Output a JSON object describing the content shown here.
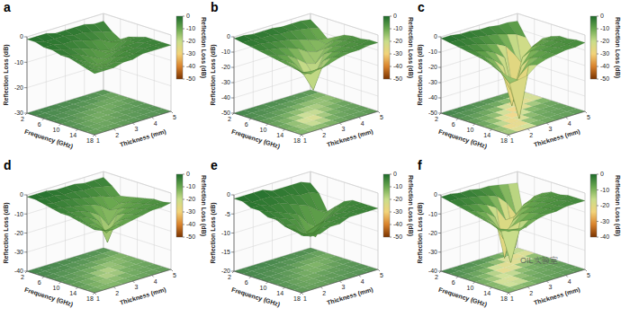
{
  "chart_data": [
    {
      "type": "surface",
      "panel": "a",
      "x_label": "Frequency (GHz)",
      "y_label": "Thickness (mm)",
      "z_label": "Reflection Loss (dB)",
      "x": [
        2,
        4,
        6,
        8,
        10,
        12,
        14,
        16,
        18
      ],
      "y": [
        1,
        1.5,
        2,
        2.5,
        3,
        3.5,
        4,
        4.5,
        5
      ],
      "z": [
        [
          -1,
          -1,
          -2,
          -2,
          -3,
          -3,
          -4,
          -5,
          -6
        ],
        [
          -1,
          -2,
          -2,
          -3,
          -4,
          -5,
          -6,
          -7,
          -6
        ],
        [
          -1,
          -2,
          -3,
          -4,
          -5,
          -7,
          -8,
          -7,
          -6
        ],
        [
          -2,
          -2,
          -3,
          -5,
          -7,
          -9,
          -8,
          -6,
          -5
        ],
        [
          -2,
          -3,
          -4,
          -6,
          -9,
          -8,
          -6,
          -5,
          -5
        ],
        [
          -2,
          -3,
          -5,
          -8,
          -8,
          -6,
          -5,
          -5,
          -4
        ],
        [
          -2,
          -4,
          -6,
          -9,
          -7,
          -5,
          -5,
          -4,
          -4
        ],
        [
          -3,
          -5,
          -8,
          -7,
          -5,
          -5,
          -4,
          -4,
          -4
        ],
        [
          -3,
          -6,
          -8,
          -6,
          -5,
          -4,
          -4,
          -4,
          -4
        ]
      ],
      "xlim": [
        2,
        18
      ],
      "ylim": [
        1,
        5
      ],
      "zlim": [
        -30,
        0
      ],
      "xticks": [
        2,
        6,
        10,
        14,
        18
      ],
      "yticks": [
        1,
        2,
        3,
        4,
        5
      ],
      "zticks": [
        -30,
        -20,
        -10,
        0
      ],
      "colorbar": {
        "label": "Reflection Loss (dB)",
        "range": [
          -50,
          0
        ],
        "ticks": [
          -50,
          -40,
          -30,
          -20,
          -10,
          0
        ]
      }
    },
    {
      "type": "surface",
      "panel": "b",
      "x_label": "Frequency (GHz)",
      "y_label": "Thickness (mm)",
      "z_label": "Reflection Loss (dB)",
      "x": [
        2,
        4,
        6,
        8,
        10,
        12,
        14,
        16,
        18
      ],
      "y": [
        1,
        1.5,
        2,
        2.5,
        3,
        3.5,
        4,
        4.5,
        5
      ],
      "z": [
        [
          -1,
          -2,
          -3,
          -4,
          -5,
          -6,
          -7,
          -8,
          -9
        ],
        [
          -1,
          -2,
          -3,
          -5,
          -7,
          -9,
          -11,
          -13,
          -12
        ],
        [
          -2,
          -3,
          -4,
          -6,
          -9,
          -13,
          -18,
          -14,
          -10
        ],
        [
          -2,
          -3,
          -5,
          -8,
          -13,
          -22,
          -30,
          -14,
          -9
        ],
        [
          -2,
          -4,
          -6,
          -10,
          -18,
          -25,
          -13,
          -9,
          -7
        ],
        [
          -3,
          -4,
          -8,
          -14,
          -20,
          -12,
          -9,
          -7,
          -6
        ],
        [
          -3,
          -5,
          -10,
          -16,
          -12,
          -9,
          -7,
          -6,
          -6
        ],
        [
          -3,
          -6,
          -12,
          -13,
          -9,
          -7,
          -6,
          -6,
          -5
        ],
        [
          -4,
          -8,
          -13,
          -10,
          -7,
          -6,
          -6,
          -5,
          -5
        ]
      ],
      "xlim": [
        2,
        18
      ],
      "ylim": [
        1,
        5
      ],
      "zlim": [
        -50,
        0
      ],
      "xticks": [
        2,
        6,
        10,
        14,
        18
      ],
      "yticks": [
        1,
        2,
        3,
        4,
        5
      ],
      "zticks": [
        -50,
        -40,
        -30,
        -20,
        -10,
        0
      ],
      "colorbar": {
        "label": "Reflection Loss (dB)",
        "range": [
          -50,
          0
        ],
        "ticks": [
          -50,
          -40,
          -30,
          -20,
          -10,
          0
        ]
      }
    },
    {
      "type": "surface",
      "panel": "c",
      "x_label": "Frequency (GHz)",
      "y_label": "Thickness (mm)",
      "z_label": "Reflection Loss (dB)",
      "x": [
        2,
        4,
        6,
        8,
        10,
        12,
        14,
        16,
        18
      ],
      "y": [
        1,
        1.5,
        2,
        2.5,
        3,
        3.5,
        4,
        4.5,
        5
      ],
      "z": [
        [
          -1,
          -2,
          -3,
          -4,
          -5,
          -6,
          -8,
          -10,
          -12
        ],
        [
          -1,
          -2,
          -4,
          -6,
          -8,
          -11,
          -15,
          -20,
          -16
        ],
        [
          -2,
          -3,
          -5,
          -8,
          -12,
          -18,
          -28,
          -45,
          -15
        ],
        [
          -2,
          -4,
          -7,
          -11,
          -18,
          -42,
          -20,
          -12,
          -10
        ],
        [
          -3,
          -5,
          -9,
          -16,
          -38,
          -18,
          -11,
          -9,
          -8
        ],
        [
          -3,
          -6,
          -12,
          -46,
          -16,
          -10,
          -8,
          -7,
          -7
        ],
        [
          -4,
          -8,
          -20,
          -25,
          -11,
          -8,
          -7,
          -6,
          -6
        ],
        [
          -4,
          -10,
          -40,
          -14,
          -9,
          -7,
          -6,
          -6,
          -6
        ],
        [
          -5,
          -14,
          -22,
          -11,
          -8,
          -6,
          -6,
          -5,
          -5
        ]
      ],
      "xlim": [
        2,
        18
      ],
      "ylim": [
        1,
        5
      ],
      "zlim": [
        -50,
        0
      ],
      "xticks": [
        2,
        6,
        10,
        14,
        18
      ],
      "yticks": [
        1,
        2,
        3,
        4,
        5
      ],
      "zticks": [
        -50,
        -40,
        -30,
        -20,
        -10,
        0
      ],
      "colorbar": {
        "label": "Reflection Loss (dB)",
        "range": [
          -50,
          0
        ],
        "ticks": [
          -50,
          -40,
          -30,
          -20,
          -10,
          0
        ]
      }
    },
    {
      "type": "surface",
      "panel": "d",
      "x_label": "Frequency (GHz)",
      "y_label": "Thickness (mm)",
      "z_label": "Reflection Loss (dB)",
      "x": [
        2,
        4,
        6,
        8,
        10,
        12,
        14,
        16,
        18
      ],
      "y": [
        1,
        1.5,
        2,
        2.5,
        3,
        3.5,
        4,
        4.5,
        5
      ],
      "z": [
        [
          -1,
          -1,
          -2,
          -3,
          -4,
          -4,
          -5,
          -6,
          -7
        ],
        [
          -1,
          -2,
          -3,
          -4,
          -5,
          -6,
          -8,
          -9,
          -9
        ],
        [
          -1,
          -2,
          -3,
          -5,
          -6,
          -8,
          -10,
          -12,
          -10
        ],
        [
          -2,
          -3,
          -4,
          -6,
          -8,
          -11,
          -16,
          -11,
          -9
        ],
        [
          -2,
          -3,
          -5,
          -7,
          -11,
          -24,
          -12,
          -9,
          -8
        ],
        [
          -2,
          -4,
          -6,
          -9,
          -18,
          -11,
          -9,
          -8,
          -7
        ],
        [
          -3,
          -4,
          -7,
          -13,
          -11,
          -9,
          -8,
          -7,
          -6
        ],
        [
          -3,
          -5,
          -9,
          -11,
          -9,
          -8,
          -7,
          -6,
          -6
        ],
        [
          -3,
          -6,
          -10,
          -9,
          -8,
          -7,
          -6,
          -6,
          -5
        ]
      ],
      "xlim": [
        2,
        18
      ],
      "ylim": [
        1,
        5
      ],
      "zlim": [
        -40,
        0
      ],
      "xticks": [
        2,
        6,
        10,
        14,
        18
      ],
      "yticks": [
        1,
        2,
        3,
        4,
        5
      ],
      "zticks": [
        -40,
        -30,
        -20,
        -10,
        0
      ],
      "colorbar": {
        "label": "Reflection Loss (dB)",
        "range": [
          -50,
          0
        ],
        "ticks": [
          -50,
          -40,
          -30,
          -20,
          -10,
          0
        ]
      }
    },
    {
      "type": "surface",
      "panel": "e",
      "x_label": "Frequency (GHz)",
      "y_label": "Thickness (mm)",
      "z_label": "Reflection Loss (dB)",
      "x": [
        2,
        4,
        6,
        8,
        10,
        12,
        14,
        16,
        18
      ],
      "y": [
        1,
        1.5,
        2,
        2.5,
        3,
        3.5,
        4,
        4.5,
        5
      ],
      "z": [
        [
          -1,
          -1,
          -2,
          -2,
          -3,
          -3,
          -4,
          -4,
          -5
        ],
        [
          -1,
          -2,
          -2,
          -3,
          -4,
          -5,
          -6,
          -6,
          -6
        ],
        [
          -1,
          -2,
          -3,
          -4,
          -5,
          -6,
          -8,
          -7,
          -6
        ],
        [
          -1,
          -2,
          -3,
          -5,
          -6,
          -9,
          -8,
          -6,
          -5
        ],
        [
          -2,
          -3,
          -4,
          -6,
          -10,
          -8,
          -6,
          -5,
          -5
        ],
        [
          -2,
          -3,
          -5,
          -9,
          -12,
          -7,
          -5,
          -5,
          -4
        ],
        [
          -2,
          -4,
          -6,
          -11,
          -8,
          -6,
          -5,
          -4,
          -4
        ],
        [
          -2,
          -4,
          -8,
          -8,
          -6,
          -5,
          -4,
          -4,
          -4
        ],
        [
          -3,
          -5,
          -9,
          -7,
          -5,
          -4,
          -4,
          -4,
          -4
        ]
      ],
      "xlim": [
        2,
        18
      ],
      "ylim": [
        1,
        5
      ],
      "zlim": [
        -20,
        0
      ],
      "xticks": [
        2,
        6,
        10,
        14,
        18
      ],
      "yticks": [
        1,
        2,
        3,
        4,
        5
      ],
      "zticks": [
        -20,
        -15,
        -10,
        -5,
        0
      ],
      "colorbar": {
        "label": "Reflection Loss (dB)",
        "range": [
          -50,
          0
        ],
        "ticks": [
          -50,
          -40,
          -30,
          -20,
          -10,
          0
        ]
      }
    },
    {
      "type": "surface",
      "panel": "f",
      "x_label": "Frequency (GHz)",
      "y_label": "Thickness (mm)",
      "z_label": "Reflection Loss (dB)",
      "x": [
        2,
        4,
        6,
        8,
        10,
        12,
        14,
        16,
        18
      ],
      "y": [
        1,
        1.5,
        2,
        2.5,
        3,
        3.5,
        4,
        4.5,
        5
      ],
      "z": [
        [
          -1,
          -2,
          -3,
          -4,
          -5,
          -6,
          -7,
          -8,
          -8
        ],
        [
          -1,
          -2,
          -4,
          -6,
          -8,
          -10,
          -12,
          -10,
          -8
        ],
        [
          -2,
          -3,
          -5,
          -8,
          -12,
          -16,
          -30,
          -12,
          -8
        ],
        [
          -2,
          -4,
          -7,
          -12,
          -22,
          -14,
          -10,
          -8,
          -6
        ],
        [
          -3,
          -5,
          -10,
          -35,
          -14,
          -9,
          -7,
          -6,
          -5
        ],
        [
          -3,
          -7,
          -18,
          -15,
          -9,
          -7,
          -6,
          -5,
          -5
        ],
        [
          -4,
          -12,
          -34,
          -10,
          -7,
          -6,
          -5,
          -5,
          -4
        ],
        [
          -5,
          -20,
          -14,
          -8,
          -6,
          -5,
          -5,
          -4,
          -4
        ],
        [
          -6,
          -28,
          -10,
          -7,
          -5,
          -5,
          -4,
          -4,
          -4
        ]
      ],
      "xlim": [
        2,
        18
      ],
      "ylim": [
        1,
        5
      ],
      "zlim": [
        -40,
        0
      ],
      "xticks": [
        2,
        6,
        10,
        14,
        18
      ],
      "yticks": [
        1,
        2,
        3,
        4,
        5
      ],
      "zticks": [
        -40,
        -30,
        -20,
        -10,
        0
      ],
      "colorbar": {
        "label": "Reflection Loss (dB)",
        "range": [
          -40,
          0
        ],
        "ticks": [
          -40,
          -30,
          -20,
          -10,
          0
        ]
      }
    }
  ],
  "watermark": "OIL实验室"
}
